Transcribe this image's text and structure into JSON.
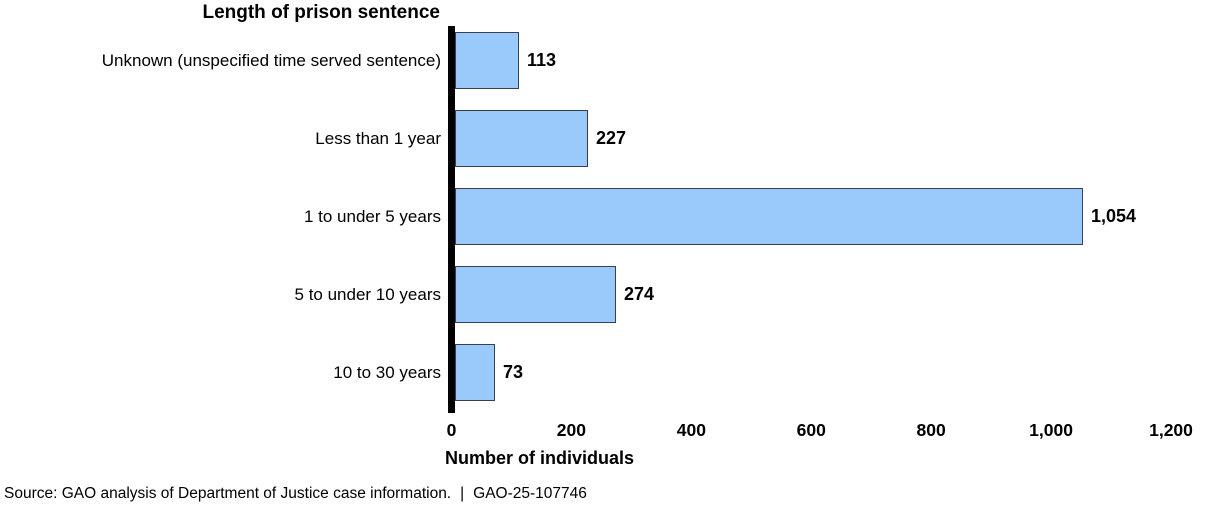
{
  "chart_data": {
    "type": "bar",
    "orientation": "horizontal",
    "title": "Length of prison sentence",
    "categories": [
      "Unknown (unspecified time served sentence)",
      "Less than 1 year",
      "1 to under 5 years",
      "5 to under 10 years",
      "10 to 30 years"
    ],
    "values": [
      113,
      227,
      1054,
      274,
      73
    ],
    "value_labels": [
      "113",
      "227",
      "1,054",
      "274",
      "73"
    ],
    "xlabel": "Number of individuals",
    "xlim": [
      0,
      1200
    ],
    "xticks": [
      0,
      200,
      400,
      600,
      800,
      1000,
      1200
    ],
    "xtick_labels": [
      "0",
      "200",
      "400",
      "600",
      "800",
      "1,000",
      "1,200"
    ],
    "grid": false,
    "legend": "none",
    "colors": {
      "bar_fill": "#9ACAFC",
      "bar_border": "#39404F",
      "axis": "#000000",
      "text": "#000000",
      "background": "#FFFFFF"
    }
  },
  "footer": {
    "source": "Source: GAO analysis of Department of Justice case information.",
    "separator": "|",
    "report_id": "GAO-25-107746"
  }
}
